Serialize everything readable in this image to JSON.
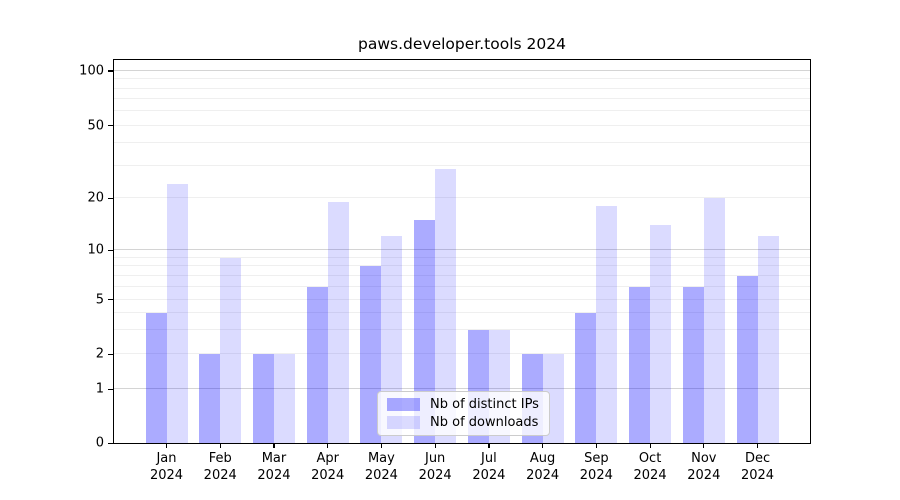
{
  "title": "paws.developer.tools 2024",
  "chart_data": {
    "type": "bar",
    "title": "paws.developer.tools 2024",
    "categories": [
      "Jan",
      "Feb",
      "Mar",
      "Apr",
      "May",
      "Jun",
      "Jul",
      "Aug",
      "Sep",
      "Oct",
      "Nov",
      "Dec"
    ],
    "year": "2024",
    "series": [
      {
        "name": "Nb of distinct IPs",
        "color": "rgba(0,0,255,0.33)",
        "solid_color_hex": "#a9a9f8",
        "values": [
          4,
          2,
          2,
          6,
          8,
          15,
          3,
          2,
          4,
          6,
          6,
          7
        ]
      },
      {
        "name": "Nb of downloads",
        "color": "rgba(0,0,255,0.14)",
        "solid_color_hex": "#dadafa",
        "values": [
          24,
          9,
          2,
          19,
          12,
          29,
          3,
          2,
          18,
          14,
          20,
          12
        ]
      }
    ],
    "xlabel": "",
    "ylabel": "",
    "yticks": [
      0,
      1,
      2,
      5,
      10,
      20,
      50,
      100
    ],
    "ylim": [
      0,
      115
    ],
    "yscale": "asinh-like (linear near 0, log above)",
    "grid": "horizontal, major at 1/10/100 with minors at 2-9, 20-90",
    "grid_major_color": "#d4d4d4",
    "grid_minor_color": "#efefef",
    "legend_position": "lower center",
    "minor_grid_values": [
      2,
      3,
      4,
      5,
      6,
      7,
      8,
      9,
      20,
      30,
      40,
      50,
      60,
      70,
      80,
      90
    ],
    "major_grid_values": [
      1,
      10,
      100
    ]
  }
}
